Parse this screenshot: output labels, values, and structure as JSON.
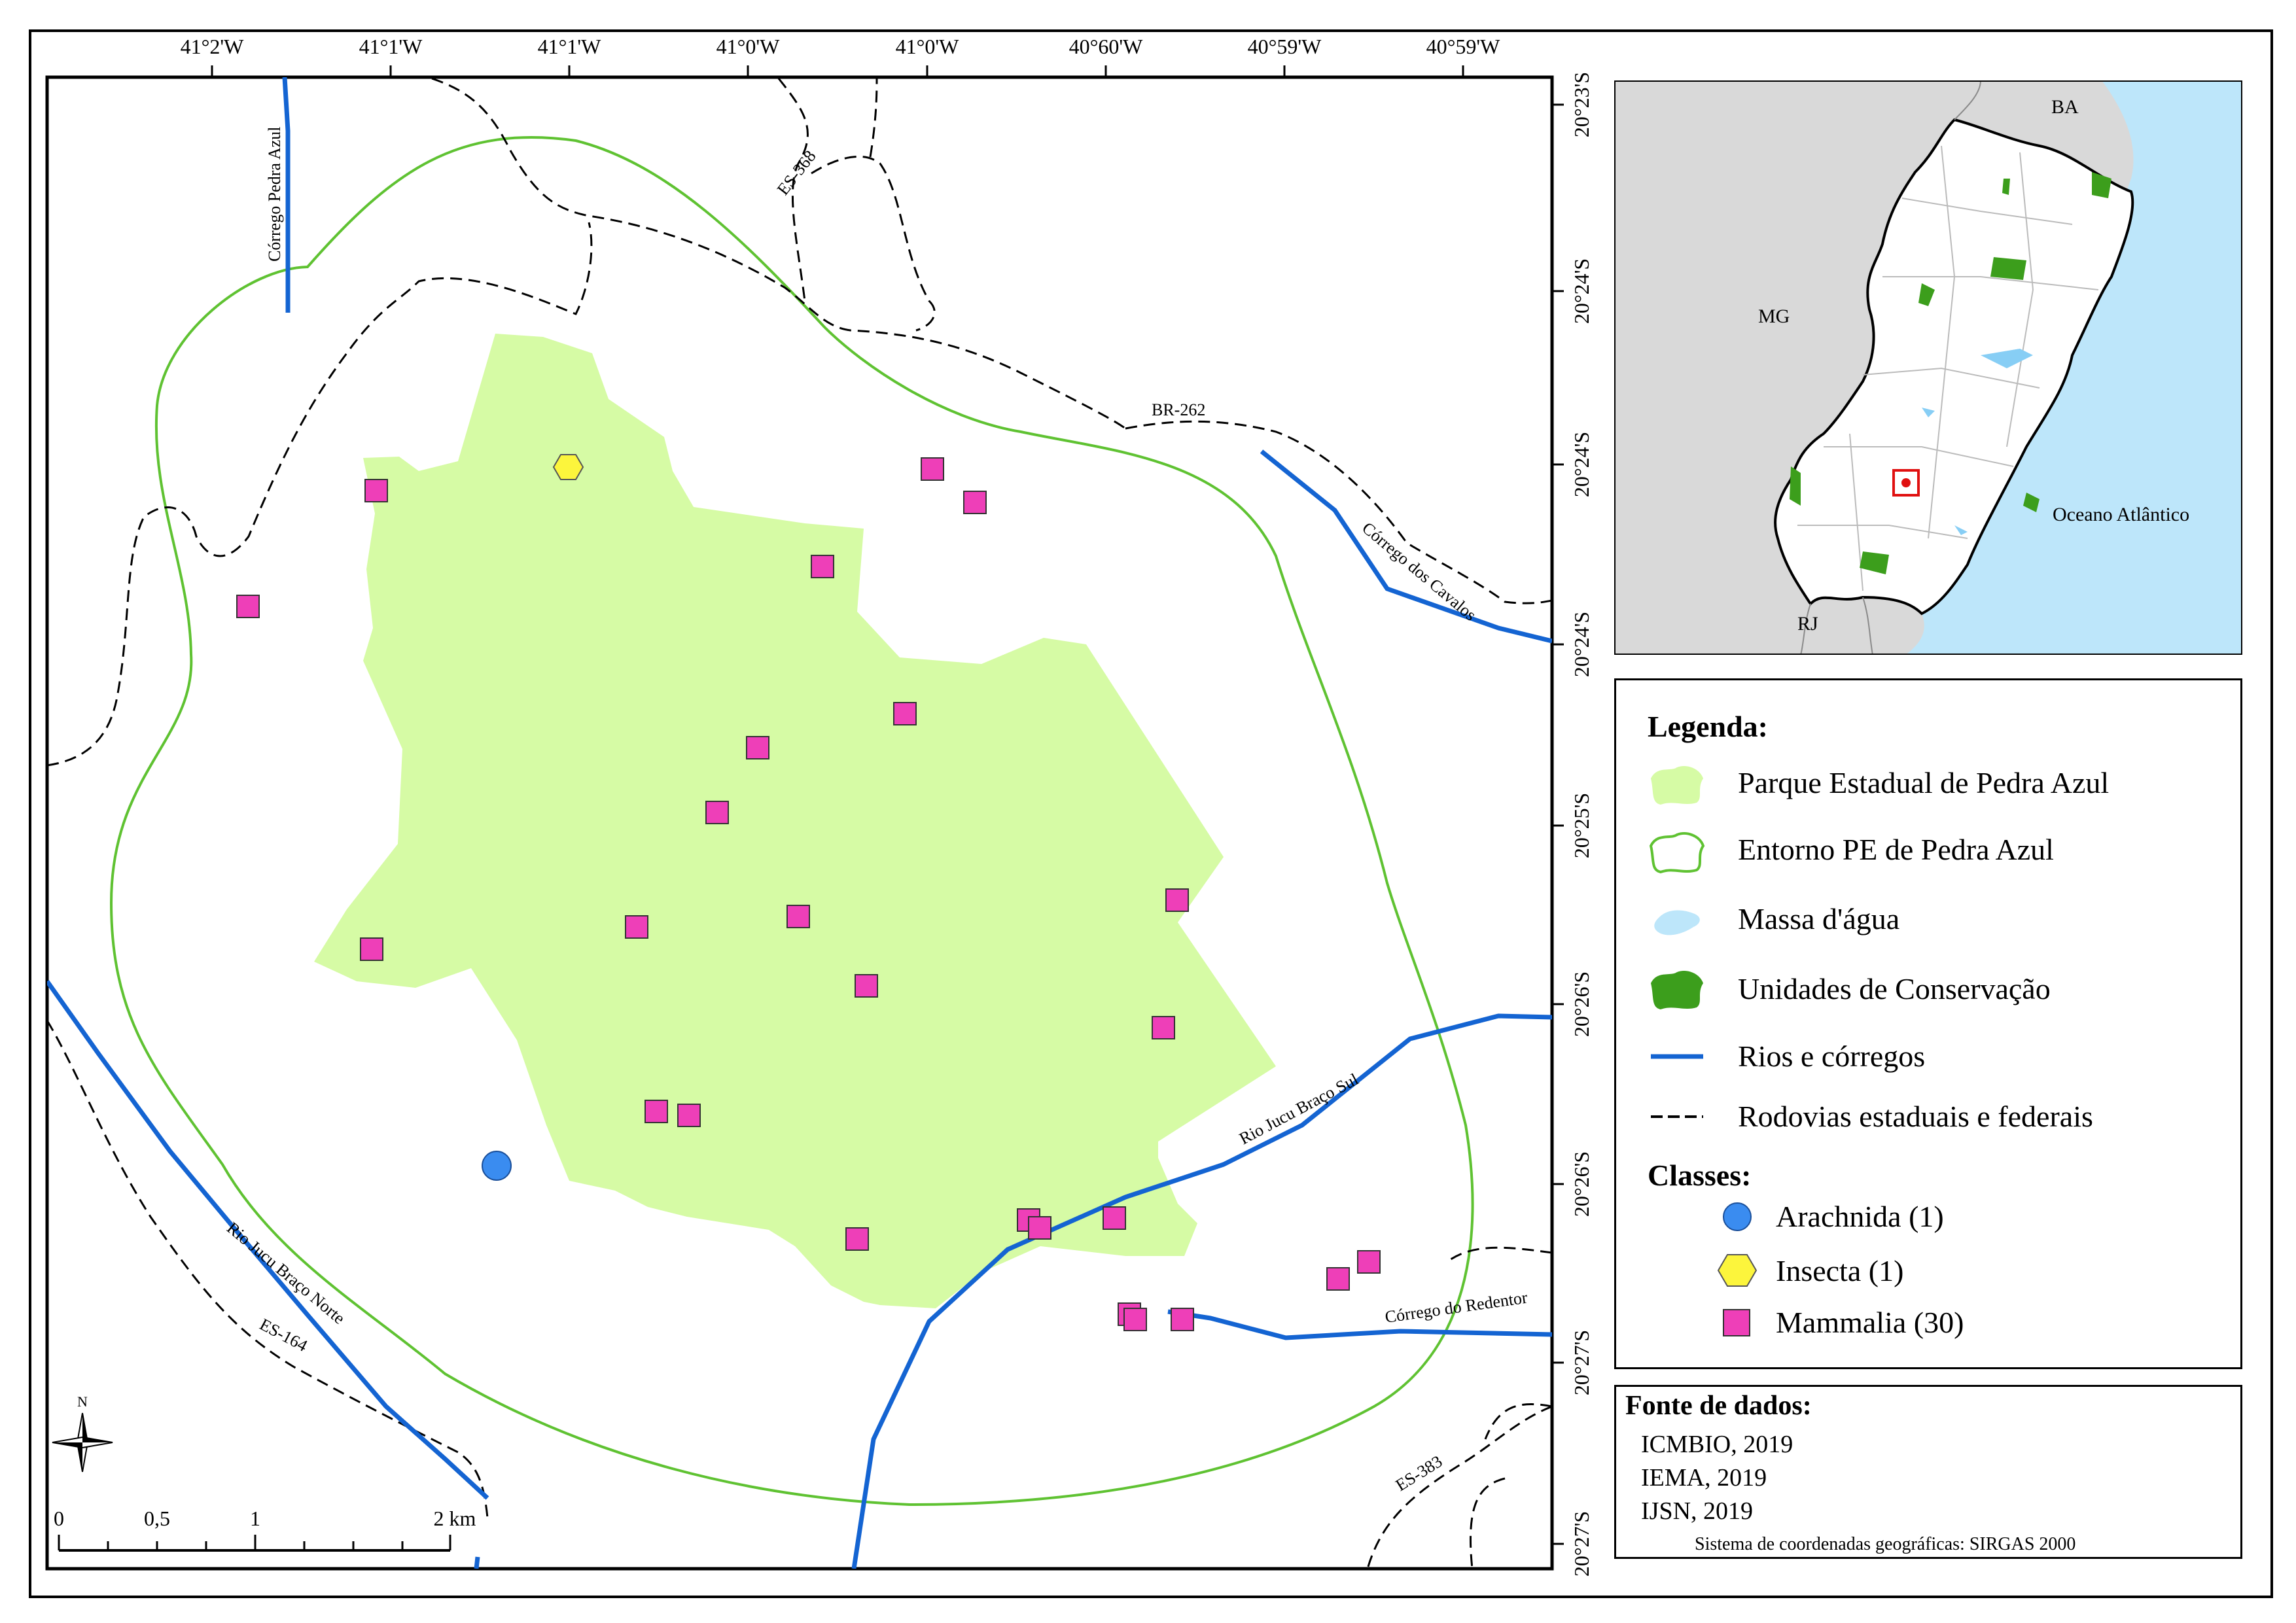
{
  "top_ticks": [
    "41°2'W",
    "41°1'W",
    "41°1'W",
    "41°0'W",
    "41°0'W",
    "40°60'W",
    "40°59'W",
    "40°59'W"
  ],
  "right_ticks": [
    "20°23'S",
    "20°24'S",
    "20°24'S",
    "20°24'S",
    "20°25'S",
    "20°26'S",
    "20°26'S",
    "20°27'S",
    "20°27'S"
  ],
  "map_labels": {
    "corrego_pedra_azul": "Córrego Pedra Azul",
    "es368": "ES-368",
    "br262": "BR-262",
    "corrego_cavalos": "Córrego dos Cavalos",
    "jucu_sul": "Rio Jucu  Braço Sul",
    "jucu_norte": "Rio Jucu Braço Norte",
    "es164": "ES-164",
    "corrego_redentor": "Córrego do Redentor",
    "es383": "ES-383"
  },
  "north_arrow": "N",
  "scale_bar": {
    "labels": [
      "0",
      "0,5",
      "1",
      "2 km"
    ]
  },
  "inset": {
    "ba": "BA",
    "mg": "MG",
    "rj": "RJ",
    "ocean": "Oceano Atlântico"
  },
  "legend": {
    "title": "Legenda:",
    "items": [
      "Parque Estadual de Pedra Azul",
      "Entorno PE de Pedra Azul",
      "Massa d'água",
      "Unidades de Conservação",
      "Rios e córregos",
      "Rodovias estaduais e federais"
    ],
    "classes_title": "Classes:",
    "classes": [
      "Arachnida (1)",
      "Insecta (1)",
      "Mammalia (30)"
    ]
  },
  "sources": {
    "title": "Fonte de dados:",
    "lines": [
      "ICMBIO, 2019",
      "IEMA, 2019",
      "IJSN, 2019"
    ],
    "crs": "Sistema de coordenadas geográficas: SIRGAS 2000"
  },
  "colors": {
    "park_fill": "#d6fba5",
    "buffer_line": "#5fc232",
    "river": "#1464d2",
    "road": "#000000",
    "mammalia": "#ee3fb8",
    "insecta": "#fcf53c",
    "arachnida": "#3a8cf0",
    "ocean": "#bde6fa",
    "conservation": "#3c9e1c",
    "inset_land": "#d9d9d9",
    "locator_box": "#e01010"
  },
  "points": {
    "mammalia_count": 30,
    "insecta_count": 1,
    "arachnida_count": 1
  }
}
